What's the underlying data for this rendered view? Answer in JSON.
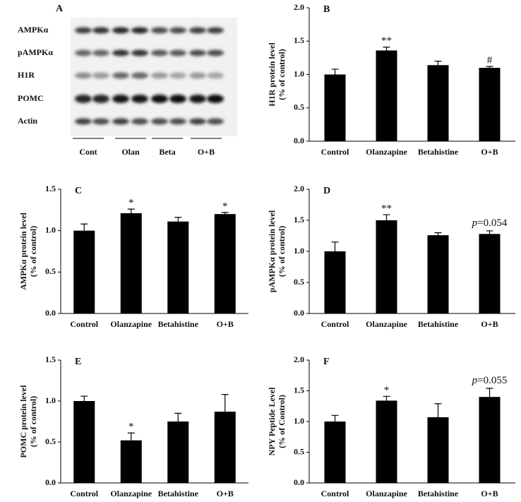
{
  "blot": {
    "label": "A",
    "rows": [
      "AMPKα",
      "pAMPKα",
      "H1R",
      "POMC",
      "Actin"
    ],
    "groups": [
      "Cont",
      "Olan",
      "Beta",
      "O+B"
    ]
  },
  "chart_data": [
    {
      "type": "bar",
      "panel": "B",
      "y_label": [
        "H1R protein level",
        "(% of control)"
      ],
      "categories": [
        "Control",
        "Olanzapine",
        "Betahistine",
        "O+B"
      ],
      "values": [
        1.0,
        1.36,
        1.14,
        1.1
      ],
      "errors": [
        0.08,
        0.05,
        0.06,
        0.02
      ],
      "color": "#000000",
      "bar_labels": [
        null,
        "**",
        null,
        "#"
      ],
      "ylim": [
        0,
        2
      ],
      "yticks": [
        {
          "value": 0,
          "label": "0.0"
        },
        {
          "value": 0.5,
          "label": "0.5"
        },
        {
          "value": 1,
          "label": "1.0"
        },
        {
          "value": 1.5,
          "label": "1.5"
        },
        {
          "value": 2,
          "label": "2.0"
        }
      ]
    },
    {
      "type": "bar",
      "panel": "C",
      "y_label": [
        "AMPKα  protein level",
        "(% of control)"
      ],
      "categories": [
        "Control",
        "Olanzapine",
        "Betahistine",
        "O+B"
      ],
      "values": [
        1.0,
        1.21,
        1.11,
        1.2
      ],
      "errors": [
        0.08,
        0.05,
        0.05,
        0.02
      ],
      "color": "#000000",
      "bar_labels": [
        null,
        "*",
        null,
        "*"
      ],
      "ylim": [
        0,
        1.5
      ],
      "yticks": [
        {
          "value": 0,
          "label": "0.0"
        },
        {
          "value": 0.5,
          "label": "0.5"
        },
        {
          "value": 1,
          "label": "1.0"
        },
        {
          "value": 1.5,
          "label": "1.5"
        }
      ]
    },
    {
      "type": "bar",
      "panel": "D",
      "y_label": [
        "pAMPKα  protein level",
        "(% of control)"
      ],
      "categories": [
        "Control",
        "Olanzapine",
        "Betahistine",
        "O+B"
      ],
      "values": [
        1.0,
        1.5,
        1.26,
        1.28
      ],
      "errors": [
        0.15,
        0.09,
        0.04,
        0.05
      ],
      "color": "#000000",
      "bar_labels": [
        null,
        "**",
        null,
        {
          "italic": "p",
          "text": "=0.054"
        }
      ],
      "ylim": [
        0,
        2
      ],
      "yticks": [
        {
          "value": 0,
          "label": "0.0"
        },
        {
          "value": 0.5,
          "label": "0.5"
        },
        {
          "value": 1,
          "label": "1.0"
        },
        {
          "value": 1.5,
          "label": "1.5"
        },
        {
          "value": 2,
          "label": "2.0"
        }
      ]
    },
    {
      "type": "bar",
      "panel": "E",
      "y_label": [
        "POMC  protein level",
        "(% of control)"
      ],
      "categories": [
        "Control",
        "Olanzapine",
        "Betahistine",
        "O+B"
      ],
      "values": [
        1.0,
        0.52,
        0.75,
        0.87
      ],
      "errors": [
        0.06,
        0.09,
        0.1,
        0.21
      ],
      "color": "#000000",
      "bar_labels": [
        null,
        "*",
        null,
        null
      ],
      "ylim": [
        0,
        1.5
      ],
      "yticks": [
        {
          "value": 0,
          "label": "0.0"
        },
        {
          "value": 0.5,
          "label": "0.5"
        },
        {
          "value": 1,
          "label": "1.0"
        },
        {
          "value": 1.5,
          "label": "1.5"
        }
      ]
    },
    {
      "type": "bar",
      "panel": "F",
      "y_label": [
        "NPY  Peptide Level",
        "(% of Control)"
      ],
      "categories": [
        "Control",
        "Olanzapine",
        "Betahistine",
        "O+B"
      ],
      "values": [
        1.0,
        1.34,
        1.07,
        1.4
      ],
      "errors": [
        0.1,
        0.07,
        0.22,
        0.14
      ],
      "color": "#000000",
      "bar_labels": [
        null,
        "*",
        null,
        {
          "italic": "p",
          "text": "=0.055"
        }
      ],
      "ylim": [
        0,
        2
      ],
      "yticks": [
        {
          "value": 0,
          "label": "0.0"
        },
        {
          "value": 0.5,
          "label": "0.5"
        },
        {
          "value": 1,
          "label": "1.0"
        },
        {
          "value": 1.5,
          "label": "1.5"
        },
        {
          "value": 2,
          "label": "2.0"
        }
      ]
    }
  ]
}
